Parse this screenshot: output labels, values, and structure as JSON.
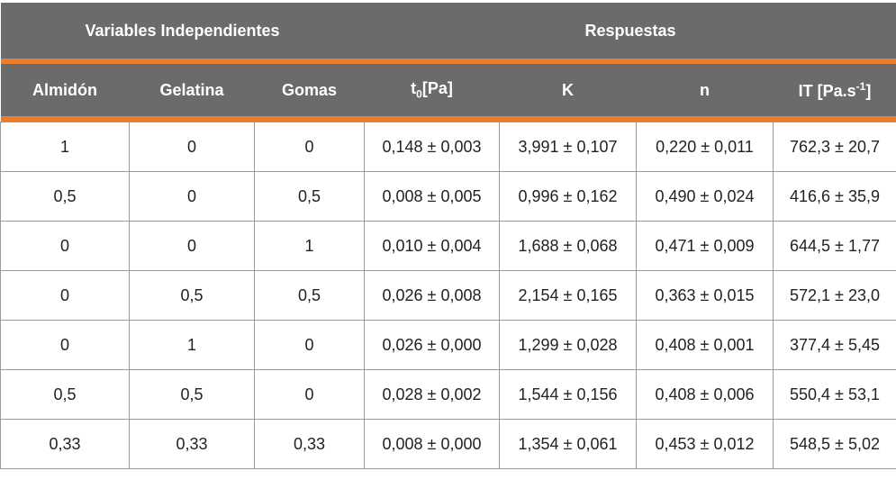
{
  "groups": {
    "independent": "Variables Independientes",
    "responses": "Respuestas"
  },
  "columns": [
    "Almidón",
    "Gelatina",
    "Gomas",
    "t0[Pa]",
    "K",
    "n",
    "IT [Pa.s-1]"
  ],
  "column_parts": {
    "t0_main": "t",
    "t0_sub": "0",
    "t0_unit": "[Pa]",
    "it_main": "IT [Pa.s",
    "it_sup": "-1",
    "it_end": "]"
  },
  "rows": [
    [
      "1",
      "0",
      "0",
      "0,148 ± 0,003",
      "3,991 ± 0,107",
      "0,220 ± 0,011",
      "762,3 ± 20,7"
    ],
    [
      "0,5",
      "0",
      "0,5",
      "0,008 ± 0,005",
      "0,996 ± 0,162",
      "0,490 ± 0,024",
      "416,6 ± 35,9"
    ],
    [
      "0",
      "0",
      "1",
      "0,010 ± 0,004",
      "1,688 ± 0,068",
      "0,471 ± 0,009",
      "644,5 ± 1,77"
    ],
    [
      "0",
      "0,5",
      "0,5",
      "0,026 ± 0,008",
      "2,154 ± 0,165",
      "0,363 ± 0,015",
      "572,1 ± 23,0"
    ],
    [
      "0",
      "1",
      "0",
      "0,026 ± 0,000",
      "1,299 ± 0,028",
      "0,408 ± 0,001",
      "377,4 ± 5,45"
    ],
    [
      "0,5",
      "0,5",
      "0",
      "0,028 ± 0,002",
      "1,544 ± 0,156",
      "0,408 ± 0,006",
      "550,4 ± 53,1"
    ],
    [
      "0,33",
      "0,33",
      "0,33",
      "0,008 ± 0,000",
      "1,354 ± 0,061",
      "0,453 ± 0,012",
      "548,5 ± 5,02"
    ]
  ],
  "colors": {
    "header_bg": "#6b6b6b",
    "accent_bar": "#e87e2e",
    "grid_line": "#9a9a9a"
  }
}
